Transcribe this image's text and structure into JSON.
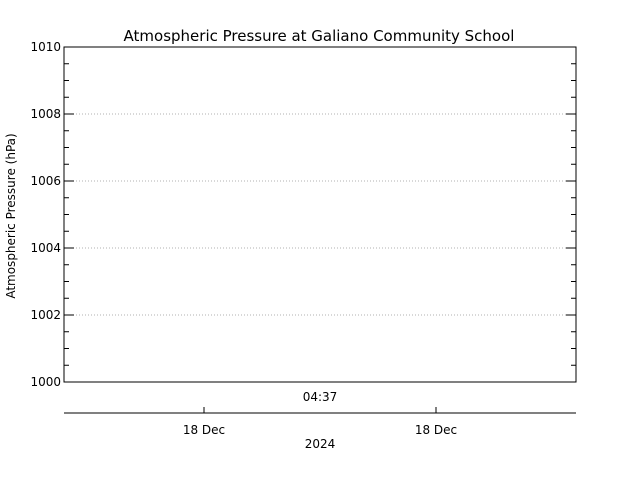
{
  "chart_data": {
    "type": "line",
    "title": "Atmospheric Pressure at Galiano Community School",
    "ylabel": "Atmospheric Pressure (hPa)",
    "ylim": [
      1000,
      1010
    ],
    "y_ticks": [
      "1000",
      "1002",
      "1004",
      "1006",
      "1008",
      "1010"
    ],
    "grid": true,
    "x_top_tick_labels": [
      "04:37"
    ],
    "x_bottom_tick_labels": [
      "18 Dec",
      "18 Dec"
    ],
    "x_bottom_axis_label": "2024",
    "series": []
  }
}
